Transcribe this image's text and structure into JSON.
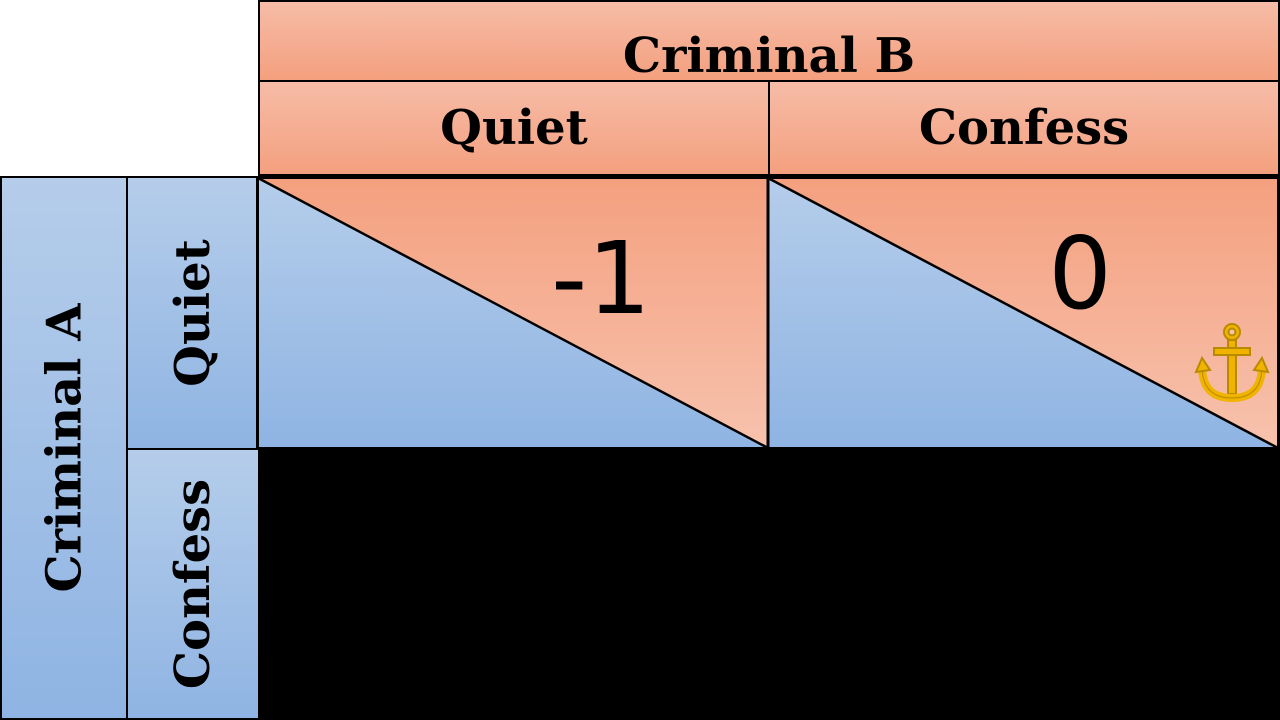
{
  "player_b": "Criminal B",
  "player_a": "Criminal A",
  "columns": [
    "Quiet",
    "Confess"
  ],
  "rows": [
    "Quiet",
    "Confess"
  ],
  "payoffs": {
    "quiet_quiet_b": "-1",
    "quiet_confess_b": "0"
  },
  "colors": {
    "criminal_b": "#f4a583",
    "criminal_a": "#9bbce6",
    "anchor": "#f0b400"
  },
  "icons": {
    "anchor": "anchor-icon"
  }
}
